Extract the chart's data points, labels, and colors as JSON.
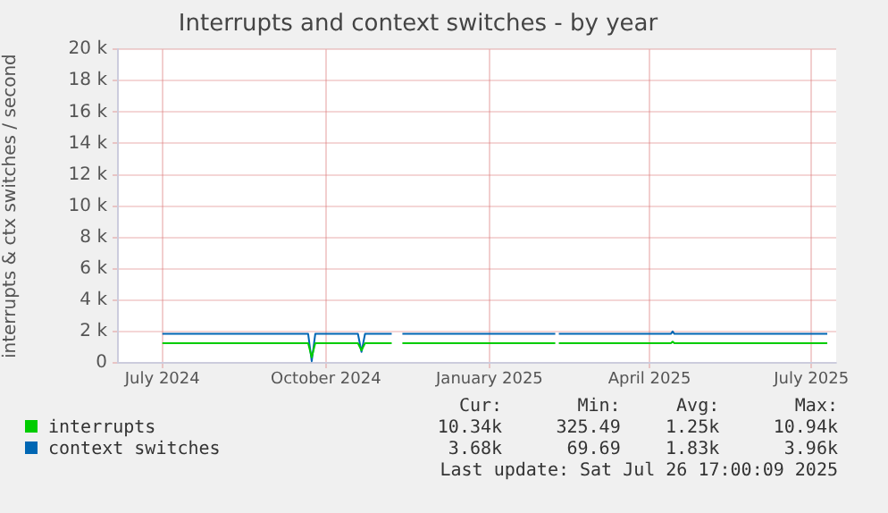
{
  "chart_data": {
    "type": "line",
    "title": "Interrupts and context switches - by year",
    "ylabel": "interrupts & ctx switches / second",
    "xlim": [
      "2024-06-06",
      "2025-07-15"
    ],
    "xticks": [
      {
        "value": "2024-07-01",
        "label": "July 2024"
      },
      {
        "value": "2024-10-01",
        "label": "October 2024"
      },
      {
        "value": "2025-01-01",
        "label": "January 2025"
      },
      {
        "value": "2025-04-01",
        "label": "April 2025"
      },
      {
        "value": "2025-07-01",
        "label": "July 2025"
      }
    ],
    "ylim": [
      0,
      20000
    ],
    "yticks": [
      {
        "value": 0,
        "label": "0"
      },
      {
        "value": 2000,
        "label": "2 k"
      },
      {
        "value": 4000,
        "label": "4 k"
      },
      {
        "value": 6000,
        "label": "6 k"
      },
      {
        "value": 8000,
        "label": "8 k"
      },
      {
        "value": 10000,
        "label": "10 k"
      },
      {
        "value": 12000,
        "label": "12 k"
      },
      {
        "value": 14000,
        "label": "14 k"
      },
      {
        "value": 16000,
        "label": "16 k"
      },
      {
        "value": 18000,
        "label": "18 k"
      },
      {
        "value": 20000,
        "label": "20 k"
      }
    ],
    "grid": true,
    "legend": "bottom left",
    "marker": "none",
    "line_style": "solid",
    "series": [
      {
        "name": "interrupts",
        "color": "#00cc00",
        "x": [
          "2024-07-01",
          "2024-09-21",
          "2024-09-23",
          "2024-09-25",
          "2024-10-19",
          "2024-10-21",
          "2024-10-23",
          "2024-11-07",
          "2024-11-08",
          "2024-11-13",
          "2025-02-07",
          "2025-02-08",
          "2025-02-09",
          "2025-04-13",
          "2025-04-14",
          "2025-04-15",
          "2025-07-10"
        ],
        "values": [
          1250,
          1250,
          350,
          1250,
          1250,
          800,
          1250,
          1250,
          null,
          1250,
          1250,
          null,
          1250,
          1250,
          1350,
          1250,
          1250
        ]
      },
      {
        "name": "context switches",
        "color": "#0066b3",
        "x": [
          "2024-07-01",
          "2024-09-21",
          "2024-09-23",
          "2024-09-25",
          "2024-10-19",
          "2024-10-21",
          "2024-10-23",
          "2024-11-07",
          "2024-11-08",
          "2024-11-13",
          "2025-02-07",
          "2025-02-08",
          "2025-02-09",
          "2025-04-13",
          "2025-04-14",
          "2025-04-15",
          "2025-07-10"
        ],
        "values": [
          1850,
          1850,
          100,
          1850,
          1850,
          700,
          1850,
          1850,
          null,
          1850,
          1850,
          null,
          1850,
          1850,
          2000,
          1850,
          1850
        ]
      }
    ],
    "annotations": [
      "Cur:",
      "Min:",
      "Avg:",
      "Max:",
      "10.34k",
      "325.49",
      "1.25k",
      "10.94k",
      "3.68k",
      "69.69",
      "1.83k",
      "3.96k",
      "Last update: Sat Jul 26 17:00:09 2025"
    ]
  }
}
